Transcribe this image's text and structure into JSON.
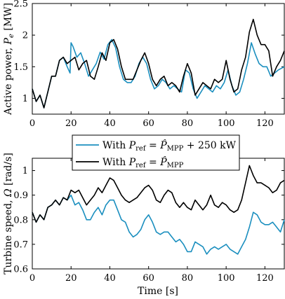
{
  "colors": {
    "series_1": "#1b8fbf",
    "series_2": "#000000"
  },
  "legend": {
    "placement": "top-center of lower panel",
    "items": [
      {
        "prefix": "With",
        "eq": "P",
        "eq_sub": "ref",
        "rhs": "P̂",
        "rhs_sub": "MPP",
        "suffix": " + 250 kW",
        "color": "#1b8fbf"
      },
      {
        "prefix": "With",
        "eq": "P",
        "eq_sub": "ref",
        "rhs": "P̂",
        "rhs_sub": "MPP",
        "suffix": "",
        "color": "#000000"
      }
    ]
  },
  "chart_data": [
    {
      "type": "line",
      "title": "",
      "xlabel": "",
      "ylabel": {
        "text": "Active power, ",
        "symbol": "P",
        "symbol_sub": "e",
        "unit": " [MW]"
      },
      "xlim": [
        0,
        130
      ],
      "ylim": [
        0.75,
        2.5
      ],
      "xticks": [
        "0",
        "20",
        "40",
        "60",
        "80",
        "100",
        "120"
      ],
      "yticks": [
        "1",
        "1.5",
        "2",
        "2.5"
      ],
      "grid": false,
      "series": [
        {
          "color": "#1b8fbf",
          "x": [
            0,
            2,
            4,
            6,
            8,
            10,
            12,
            14,
            16,
            18,
            19.5,
            20,
            21,
            23,
            25,
            27,
            29,
            31,
            33,
            35,
            37,
            39,
            41,
            43,
            45,
            47,
            49,
            51,
            53,
            55,
            57,
            59,
            61,
            63,
            65,
            67,
            69,
            71,
            73,
            75,
            77,
            79,
            81,
            83,
            85,
            87,
            89,
            91,
            93,
            95,
            97,
            99,
            101,
            103,
            105,
            107,
            109,
            111,
            113,
            115,
            117,
            119,
            121,
            123,
            125,
            127,
            130
          ],
          "y": [
            1.15,
            0.95,
            1.05,
            0.85,
            1.1,
            1.35,
            1.35,
            1.6,
            1.65,
            1.5,
            1.4,
            1.88,
            1.82,
            1.65,
            1.72,
            1.55,
            1.35,
            1.45,
            1.55,
            1.73,
            1.62,
            1.85,
            1.93,
            1.8,
            1.5,
            1.3,
            1.25,
            1.25,
            1.35,
            1.55,
            1.65,
            1.55,
            1.3,
            1.15,
            1.2,
            1.3,
            1.25,
            1.15,
            1.2,
            1.15,
            1.1,
            1.45,
            1.4,
            1.15,
            1.0,
            1.1,
            1.2,
            1.15,
            1.1,
            1.2,
            1.15,
            1.25,
            1.45,
            1.2,
            1.05,
            1.1,
            1.3,
            1.55,
            1.88,
            1.7,
            1.55,
            1.5,
            1.5,
            1.35,
            1.4,
            1.45,
            1.5
          ]
        },
        {
          "color": "#000000",
          "x": [
            0,
            2,
            4,
            6,
            8,
            10,
            12,
            14,
            16,
            18,
            20,
            22,
            24,
            26,
            28,
            30,
            32,
            34,
            36,
            38,
            40,
            42,
            44,
            46,
            48,
            50,
            52,
            54,
            56,
            58,
            60,
            62,
            64,
            66,
            68,
            70,
            72,
            74,
            76,
            78,
            80,
            82,
            84,
            86,
            88,
            90,
            92,
            94,
            96,
            98,
            100,
            102,
            104,
            106,
            108,
            110,
            112,
            114,
            116,
            118,
            120,
            122,
            124,
            126,
            128,
            130
          ],
          "y": [
            1.15,
            0.95,
            1.05,
            0.85,
            1.1,
            1.35,
            1.35,
            1.6,
            1.65,
            1.55,
            1.6,
            1.65,
            1.45,
            1.55,
            1.6,
            1.35,
            1.3,
            1.5,
            1.72,
            1.6,
            1.88,
            1.93,
            1.78,
            1.5,
            1.3,
            1.3,
            1.3,
            1.45,
            1.6,
            1.72,
            1.55,
            1.3,
            1.2,
            1.3,
            1.35,
            1.2,
            1.25,
            1.2,
            1.1,
            1.35,
            1.55,
            1.4,
            1.05,
            1.15,
            1.25,
            1.2,
            1.15,
            1.3,
            1.25,
            1.3,
            1.6,
            1.3,
            1.1,
            1.15,
            1.45,
            1.65,
            2.05,
            2.25,
            2.0,
            1.85,
            1.85,
            1.75,
            1.35,
            1.5,
            1.6,
            1.75
          ]
        }
      ]
    },
    {
      "type": "line",
      "title": "",
      "xlabel": "Time [s]",
      "ylabel": {
        "text": "Turbine speed, ",
        "symbol": "Ω",
        "symbol_sub": "",
        "unit": " [rad/s]"
      },
      "xlim": [
        0,
        130
      ],
      "ylim": [
        0.6,
        1.05
      ],
      "xticks": [
        "0",
        "20",
        "40",
        "60",
        "80",
        "100",
        "120"
      ],
      "yticks": [
        "0.6",
        "0.7",
        "0.8",
        "0.9",
        "1"
      ],
      "grid": false,
      "series": [
        {
          "color": "#1b8fbf",
          "x": [
            0,
            2,
            4,
            6,
            8,
            10,
            12,
            14,
            16,
            18,
            20,
            22,
            24,
            26,
            28,
            30,
            32,
            34,
            36,
            38,
            40,
            42,
            44,
            46,
            48,
            50,
            52,
            54,
            56,
            58,
            60,
            62,
            64,
            66,
            68,
            70,
            72,
            74,
            76,
            78,
            80,
            82,
            84,
            86,
            88,
            90,
            92,
            94,
            96,
            98,
            100,
            102,
            104,
            106,
            108,
            110,
            112,
            114,
            116,
            118,
            120,
            122,
            124,
            126,
            128,
            130
          ],
          "y": [
            0.83,
            0.79,
            0.82,
            0.8,
            0.85,
            0.86,
            0.88,
            0.86,
            0.89,
            0.88,
            0.9,
            0.86,
            0.87,
            0.84,
            0.8,
            0.8,
            0.83,
            0.85,
            0.82,
            0.86,
            0.88,
            0.88,
            0.84,
            0.8,
            0.79,
            0.75,
            0.73,
            0.74,
            0.76,
            0.8,
            0.82,
            0.79,
            0.75,
            0.74,
            0.75,
            0.75,
            0.73,
            0.71,
            0.72,
            0.7,
            0.67,
            0.67,
            0.71,
            0.7,
            0.69,
            0.66,
            0.68,
            0.69,
            0.68,
            0.69,
            0.7,
            0.68,
            0.67,
            0.66,
            0.69,
            0.72,
            0.77,
            0.83,
            0.82,
            0.79,
            0.78,
            0.78,
            0.79,
            0.77,
            0.75,
            0.8
          ]
        },
        {
          "color": "#000000",
          "x": [
            0,
            2,
            4,
            6,
            8,
            10,
            12,
            14,
            16,
            18,
            20,
            22,
            24,
            26,
            28,
            30,
            32,
            34,
            36,
            38,
            40,
            42,
            44,
            46,
            48,
            50,
            52,
            54,
            56,
            58,
            60,
            62,
            64,
            66,
            68,
            70,
            72,
            74,
            76,
            78,
            80,
            82,
            84,
            86,
            88,
            90,
            92,
            94,
            96,
            98,
            100,
            102,
            104,
            106,
            108,
            110,
            112,
            114,
            116,
            118,
            120,
            122,
            124,
            126,
            128,
            130
          ],
          "y": [
            0.83,
            0.79,
            0.82,
            0.8,
            0.85,
            0.86,
            0.88,
            0.86,
            0.89,
            0.88,
            0.92,
            0.91,
            0.92,
            0.89,
            0.86,
            0.88,
            0.9,
            0.93,
            0.91,
            0.94,
            0.97,
            0.96,
            0.93,
            0.9,
            0.88,
            0.87,
            0.88,
            0.89,
            0.91,
            0.93,
            0.94,
            0.92,
            0.88,
            0.87,
            0.9,
            0.92,
            0.91,
            0.87,
            0.85,
            0.87,
            0.85,
            0.84,
            0.88,
            0.86,
            0.84,
            0.86,
            0.9,
            0.86,
            0.85,
            0.87,
            0.86,
            0.84,
            0.83,
            0.84,
            0.88,
            0.95,
            1.02,
            0.98,
            0.95,
            0.95,
            0.94,
            0.93,
            0.91,
            0.92,
            0.95,
            0.96
          ]
        }
      ]
    }
  ]
}
